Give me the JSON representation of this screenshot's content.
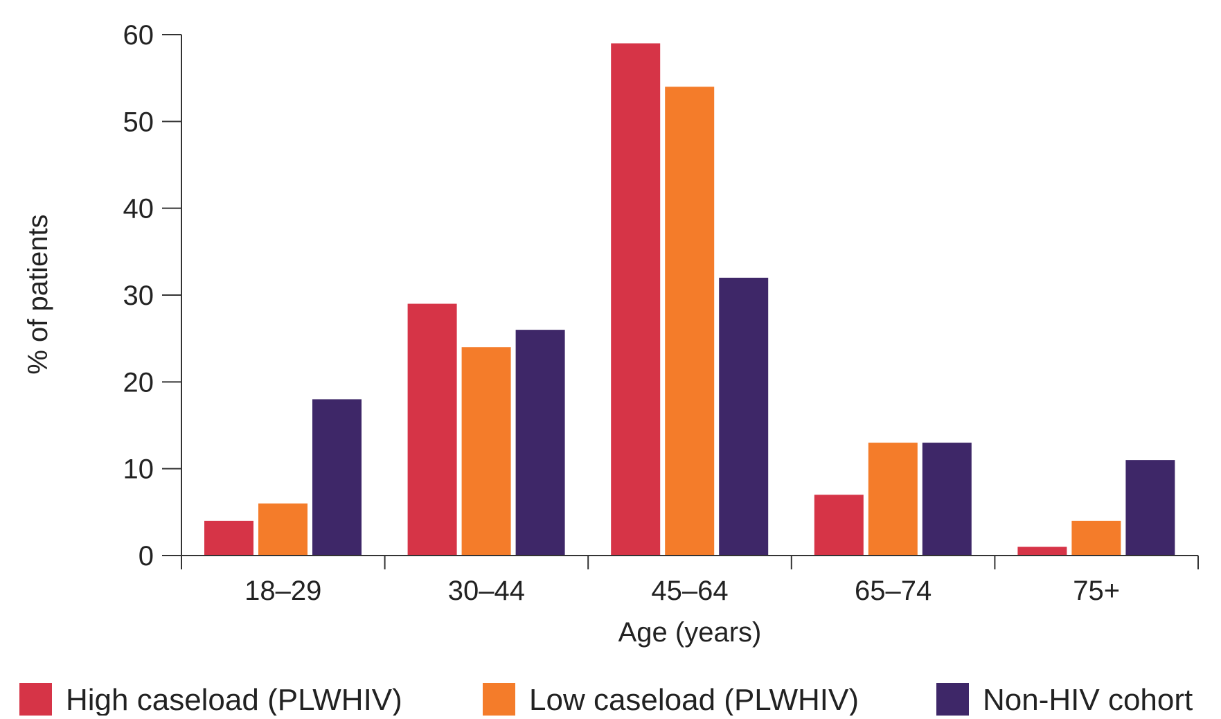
{
  "chart_data": {
    "type": "bar",
    "title": "",
    "xlabel": "Age (years)",
    "ylabel": "% of patients",
    "ylim": [
      0,
      60
    ],
    "yticks": [
      0,
      10,
      20,
      30,
      40,
      50,
      60
    ],
    "grid": false,
    "legend_position": "bottom",
    "categories": [
      "18–29",
      "30–44",
      "45–64",
      "65–74",
      "75+"
    ],
    "series": [
      {
        "name": "High caseload (PLWHIV)",
        "color": "#d63447",
        "values": [
          4,
          29,
          59,
          7,
          1
        ]
      },
      {
        "name": "Low caseload (PLWHIV)",
        "color": "#f47c2a",
        "values": [
          6,
          24,
          54,
          13,
          4
        ]
      },
      {
        "name": "Non-HIV cohort",
        "color": "#3e2768",
        "values": [
          18,
          26,
          32,
          13,
          11
        ]
      }
    ]
  }
}
